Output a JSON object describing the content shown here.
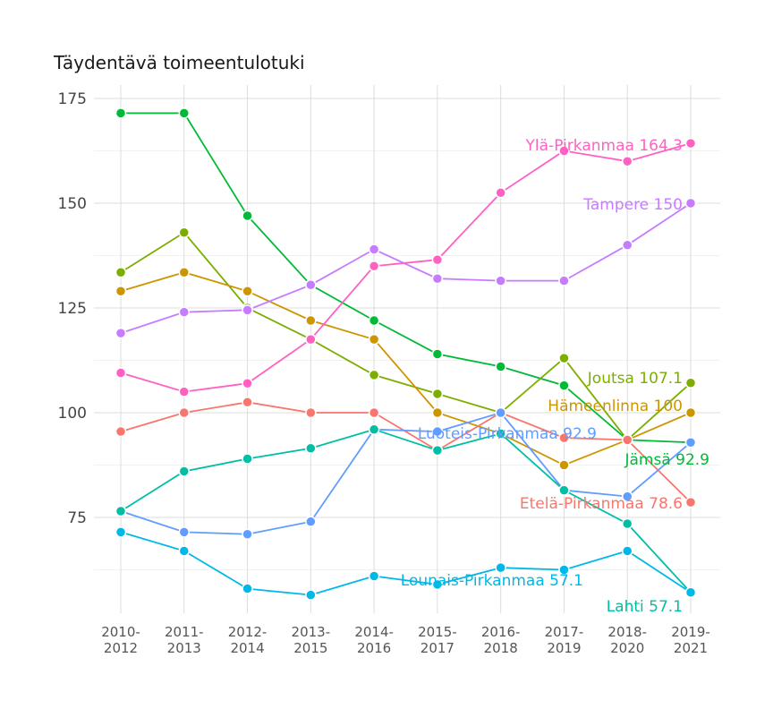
{
  "chart_data": {
    "type": "line",
    "title": "Täydentävä toimeentulotuki",
    "xlabel": "",
    "ylabel": "",
    "ylim": [
      52,
      177
    ],
    "y_ticks": [
      75,
      100,
      125,
      150,
      175
    ],
    "categories": [
      "2010-2012",
      "2011-2013",
      "2012-2014",
      "2013-2015",
      "2014-2016",
      "2015-2017",
      "2016-2018",
      "2017-2019",
      "2018-2020",
      "2019-2021"
    ],
    "category_lines": [
      [
        "2010-",
        "2012"
      ],
      [
        "2011-",
        "2013"
      ],
      [
        "2012-",
        "2014"
      ],
      [
        "2013-",
        "2015"
      ],
      [
        "2014-",
        "2016"
      ],
      [
        "2015-",
        "2017"
      ],
      [
        "2016-",
        "2018"
      ],
      [
        "2017-",
        "2019"
      ],
      [
        "2018-",
        "2020"
      ],
      [
        "2019-",
        "2021"
      ]
    ],
    "grid": true,
    "legend": "none",
    "series": [
      {
        "name": "Jämsä",
        "color": "#00ba38",
        "values": [
          171.5,
          171.5,
          147,
          130.5,
          122,
          114,
          111,
          106.5,
          93.5,
          92.9
        ],
        "label": "Jämsä 92.9"
      },
      {
        "name": "Joutsa",
        "color": "#7cae00",
        "values": [
          133.5,
          143,
          125,
          117.5,
          109,
          104.5,
          100,
          113,
          93.5,
          107.1
        ],
        "label": "Joutsa 107.1"
      },
      {
        "name": "Hämeenlinna",
        "color": "#cd9600",
        "values": [
          129,
          133.5,
          129,
          122,
          117.5,
          100,
          95,
          87.5,
          93.5,
          100
        ],
        "label": "Hämeenlinna 100"
      },
      {
        "name": "Tampere",
        "color": "#c77cff",
        "values": [
          119,
          124,
          124.5,
          130.5,
          139,
          132,
          131.5,
          131.5,
          140,
          150
        ],
        "label": "Tampere 150"
      },
      {
        "name": "Ylä-Pirkanmaa",
        "color": "#ff61c3",
        "values": [
          109.5,
          105,
          107,
          117.5,
          135,
          136.5,
          152.5,
          162.5,
          160,
          164.3
        ],
        "label": "Ylä-Pirkanmaa 164.3"
      },
      {
        "name": "Etelä-Pirkanmaa",
        "color": "#f8766d",
        "values": [
          95.5,
          100,
          102.5,
          100,
          100,
          91,
          100,
          94,
          93.5,
          78.6
        ],
        "label": "Etelä-Pirkanmaa 78.6"
      },
      {
        "name": "Luoteis-Pirkanmaa",
        "color": "#619cff",
        "values": [
          76.5,
          71.5,
          71,
          74,
          96,
          95.5,
          100,
          81.5,
          80,
          92.9
        ],
        "label": "Luoteis-Pirkanmaa 92.9"
      },
      {
        "name": "Lahti",
        "color": "#00bfa5",
        "values": [
          76.5,
          86,
          89,
          91.5,
          96,
          91,
          95,
          81.5,
          73.5,
          57.1
        ],
        "label": "Lahti 57.1"
      },
      {
        "name": "Lounais-Pirkanmaa",
        "color": "#00b8e7",
        "values": [
          71.5,
          67,
          58,
          56.5,
          61,
          59,
          63,
          62.5,
          67,
          57.1
        ],
        "label": "Lounais-Pirkanmaa 57.1"
      }
    ]
  }
}
